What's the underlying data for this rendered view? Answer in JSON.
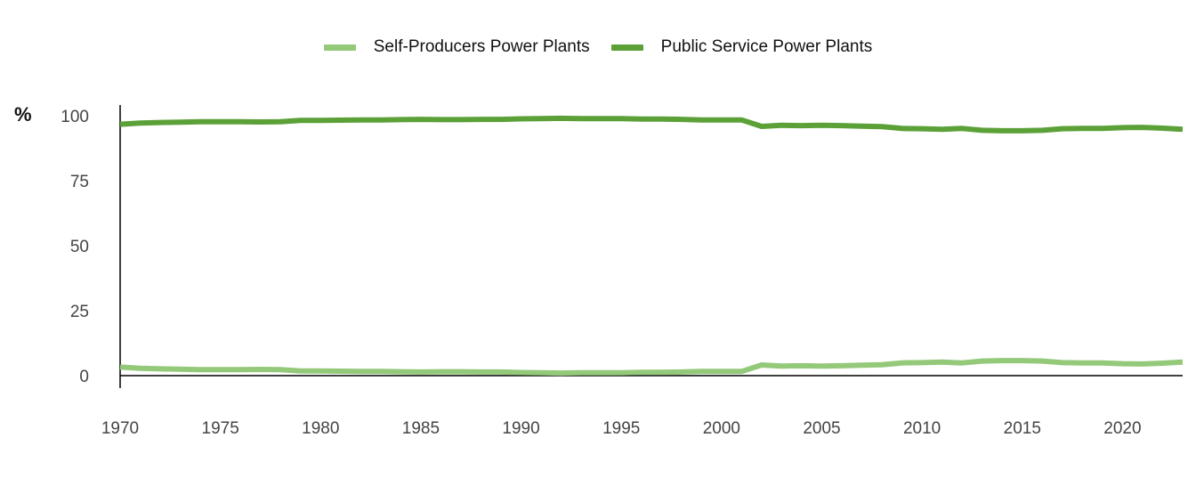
{
  "chart_data": {
    "type": "line",
    "title": "",
    "xlabel": "",
    "ylabel": "%",
    "ylim": [
      0,
      100
    ],
    "xlim": [
      1970,
      2023
    ],
    "yticks": [
      0,
      25,
      50,
      75,
      100
    ],
    "xticks": [
      1970,
      1975,
      1980,
      1985,
      1990,
      1995,
      2000,
      2005,
      2010,
      2015,
      2020
    ],
    "legend_position": "top-center",
    "grid": false,
    "x": [
      1970,
      1971,
      1972,
      1973,
      1974,
      1975,
      1976,
      1977,
      1978,
      1979,
      1980,
      1981,
      1982,
      1983,
      1984,
      1985,
      1986,
      1987,
      1988,
      1989,
      1990,
      1991,
      1992,
      1993,
      1994,
      1995,
      1996,
      1997,
      1998,
      1999,
      2000,
      2001,
      2002,
      2003,
      2004,
      2005,
      2006,
      2007,
      2008,
      2009,
      2010,
      2011,
      2012,
      2013,
      2014,
      2015,
      2016,
      2017,
      2018,
      2019,
      2020,
      2021,
      2022,
      2023
    ],
    "series": [
      {
        "name": "Self-Producers Power Plants",
        "color": "#94c97a",
        "values": [
          3.3,
          2.8,
          2.6,
          2.5,
          2.3,
          2.3,
          2.3,
          2.4,
          2.3,
          1.8,
          1.8,
          1.7,
          1.6,
          1.6,
          1.5,
          1.4,
          1.5,
          1.5,
          1.4,
          1.4,
          1.2,
          1.1,
          1.0,
          1.1,
          1.1,
          1.1,
          1.3,
          1.3,
          1.4,
          1.6,
          1.6,
          1.6,
          4.1,
          3.7,
          3.8,
          3.7,
          3.8,
          4.0,
          4.2,
          4.9,
          5.0,
          5.2,
          4.9,
          5.6,
          5.8,
          5.8,
          5.6,
          5.0,
          4.9,
          4.9,
          4.6,
          4.5,
          4.8,
          5.2
        ]
      },
      {
        "name": "Public Service Power Plants",
        "color": "#5ba138",
        "values": [
          96.7,
          97.2,
          97.4,
          97.5,
          97.7,
          97.7,
          97.7,
          97.6,
          97.7,
          98.2,
          98.2,
          98.3,
          98.4,
          98.4,
          98.5,
          98.6,
          98.5,
          98.5,
          98.6,
          98.6,
          98.8,
          98.9,
          99.0,
          98.9,
          98.9,
          98.9,
          98.7,
          98.7,
          98.6,
          98.4,
          98.4,
          98.4,
          95.9,
          96.3,
          96.2,
          96.3,
          96.2,
          96.0,
          95.8,
          95.1,
          95.0,
          94.8,
          95.1,
          94.4,
          94.2,
          94.2,
          94.4,
          95.0,
          95.1,
          95.1,
          95.4,
          95.5,
          95.2,
          94.8
        ]
      }
    ]
  }
}
